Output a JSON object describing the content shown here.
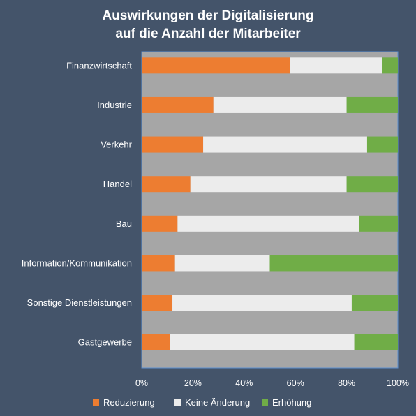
{
  "chart_data": {
    "type": "bar",
    "orientation": "horizontal",
    "stacked": true,
    "title": [
      "Auswirkungen der Digitalisierung",
      "auf die Anzahl der Mitarbeiter"
    ],
    "categories": [
      "Finanzwirtschaft",
      "Industrie",
      "Verkehr",
      "Handel",
      "Bau",
      "Information/Kommunikation",
      "Sonstige Dienstleistungen",
      "Gastgewerbe"
    ],
    "series": [
      {
        "name": "Reduzierung",
        "color": "#ed7d31",
        "values": [
          58,
          28,
          24,
          19,
          14,
          13,
          12,
          11
        ]
      },
      {
        "name": "Keine Änderung",
        "color": "#ececec",
        "values": [
          36,
          52,
          64,
          61,
          71,
          37,
          70,
          72
        ]
      },
      {
        "name": "Erhöhung",
        "color": "#70ad47",
        "values": [
          6,
          20,
          12,
          20,
          15,
          50,
          18,
          17
        ]
      }
    ],
    "x_ticks": [
      "0%",
      "20%",
      "40%",
      "60%",
      "80%",
      "100%"
    ],
    "xlim": [
      0,
      100
    ],
    "legend_position": "bottom",
    "plot_background": "#a6a6a6",
    "band_color": "#44546a",
    "background": "#44546a"
  }
}
